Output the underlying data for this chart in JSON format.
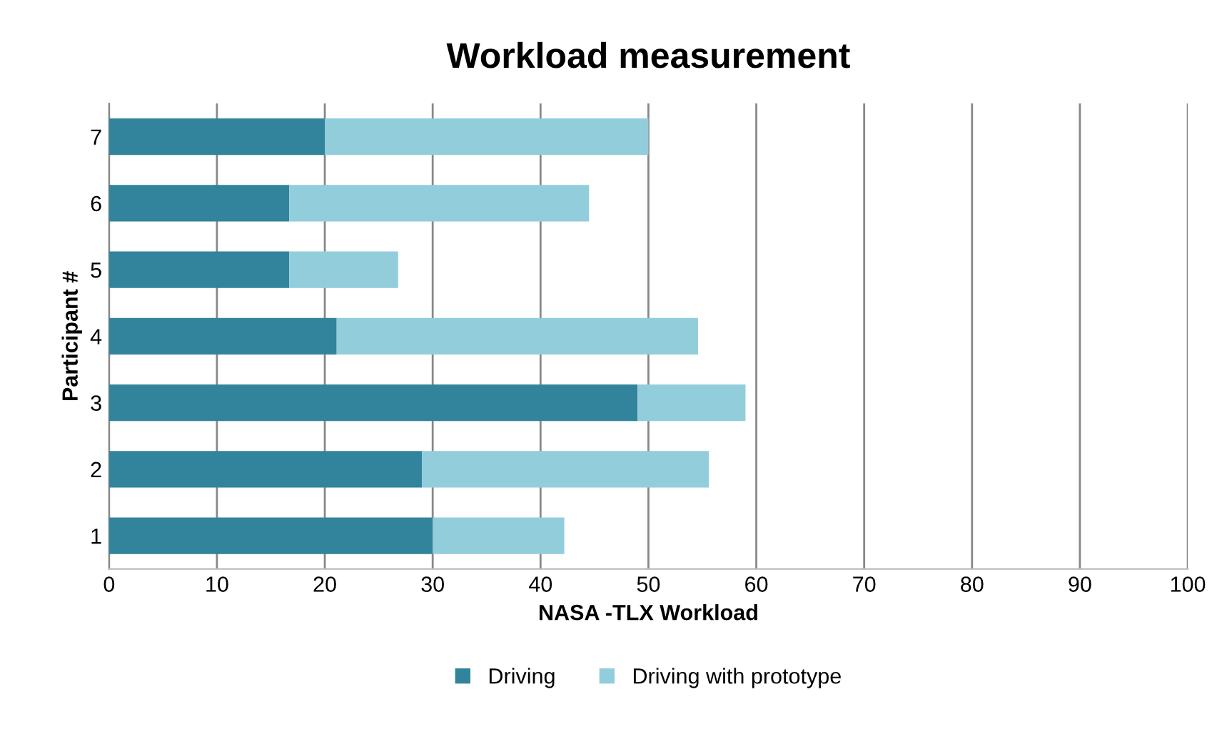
{
  "chart_data": {
    "type": "bar",
    "orientation": "horizontal",
    "stacked": true,
    "title": "Workload measurement",
    "xlabel": "NASA -TLX Workload",
    "ylabel": "Participant #",
    "categories": [
      "7",
      "6",
      "5",
      "4",
      "3",
      "2",
      "1"
    ],
    "series": [
      {
        "name": "Driving",
        "color": "#31849b",
        "values": [
          20,
          16.7,
          16.7,
          21.1,
          49,
          29,
          30
        ]
      },
      {
        "name": "Driving with prototype",
        "color": "#92cddc",
        "values": [
          30,
          27.8,
          10.1,
          33.5,
          10,
          26.6,
          12.2
        ]
      }
    ],
    "xlim": [
      0,
      100
    ],
    "xticks": [
      0,
      10,
      20,
      30,
      40,
      50,
      60,
      70,
      80,
      90,
      100
    ],
    "grid": "x",
    "legend": "bottom"
  }
}
